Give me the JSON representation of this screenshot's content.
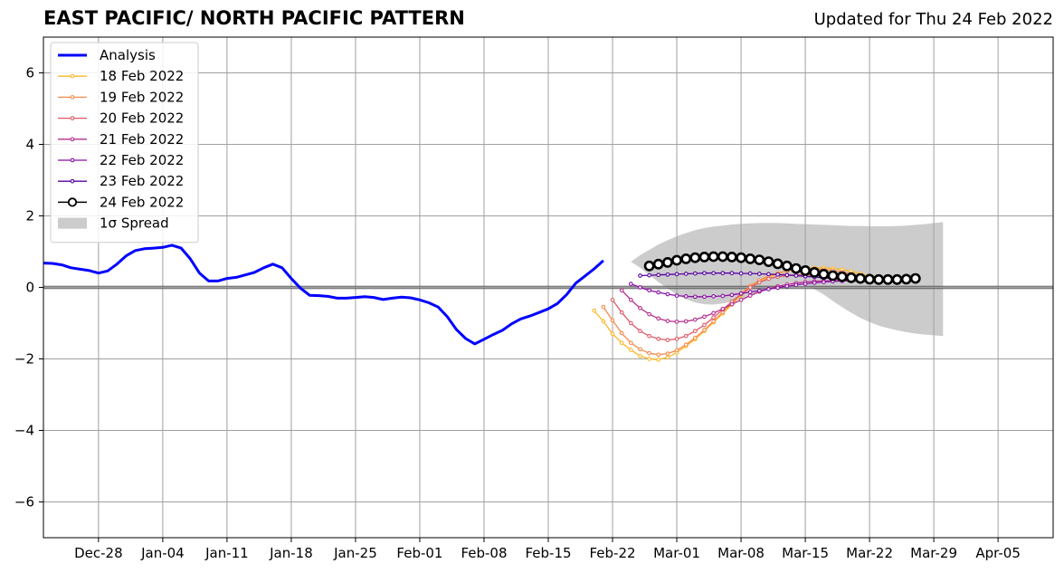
{
  "header": {
    "title": "EAST PACIFIC/ NORTH PACIFIC PATTERN",
    "updated": "Updated for Thu 24 Feb 2022"
  },
  "chart_data": {
    "type": "line",
    "x_axis_type": "date",
    "xlim": [
      "2021-12-22",
      "2022-04-11"
    ],
    "ylim": [
      -7,
      7
    ],
    "yticks": [
      -6,
      -4,
      -2,
      0,
      2,
      4,
      6
    ],
    "ytick_labels": [
      "−6",
      "−4",
      "−2",
      "0",
      "2",
      "4",
      "6"
    ],
    "xticks": [
      "2021-12-28",
      "2022-01-04",
      "2022-01-11",
      "2022-01-18",
      "2022-01-25",
      "2022-02-01",
      "2022-02-08",
      "2022-02-15",
      "2022-02-22",
      "2022-03-01",
      "2022-03-08",
      "2022-03-15",
      "2022-03-22",
      "2022-03-29",
      "2022-04-05"
    ],
    "xtick_labels": [
      "Dec-28",
      "Jan-04",
      "Jan-11",
      "Jan-18",
      "Jan-25",
      "Feb-01",
      "Feb-08",
      "Feb-15",
      "Feb-22",
      "Mar-01",
      "Mar-08",
      "Mar-15",
      "Mar-22",
      "Mar-29",
      "Apr-05"
    ],
    "grid": true,
    "legend_position": "upper-left",
    "colors": {
      "analysis": "#0000ff",
      "spread": "#cccccc",
      "grid": "#a0a0a0",
      "zero_line": "#000000"
    },
    "analysis": {
      "name": "Analysis",
      "color": "#0000ff",
      "start": "2021-12-22",
      "values": [
        0.68,
        0.67,
        0.63,
        0.55,
        0.51,
        0.47,
        0.4,
        0.46,
        0.65,
        0.88,
        1.03,
        1.08,
        1.1,
        1.12,
        1.18,
        1.1,
        0.8,
        0.4,
        0.18,
        0.18,
        0.25,
        0.28,
        0.35,
        0.42,
        0.55,
        0.65,
        0.55,
        0.25,
        -0.02,
        -0.22,
        -0.23,
        -0.25,
        -0.3,
        -0.3,
        -0.28,
        -0.26,
        -0.28,
        -0.34,
        -0.3,
        -0.27,
        -0.29,
        -0.35,
        -0.43,
        -0.55,
        -0.82,
        -1.18,
        -1.43,
        -1.58,
        -1.45,
        -1.32,
        -1.2,
        -1.02,
        -0.88,
        -0.8,
        -0.7,
        -0.6,
        -0.45,
        -0.2,
        0.12,
        0.32,
        0.52,
        0.75
      ]
    },
    "spread": {
      "name": "1σ Spread",
      "color": "#cccccc",
      "start": "2022-02-24",
      "upper": [
        0.72,
        0.9,
        1.05,
        1.2,
        1.32,
        1.43,
        1.52,
        1.6,
        1.66,
        1.7,
        1.73,
        1.76,
        1.78,
        1.79,
        1.8,
        1.8,
        1.8,
        1.79,
        1.78,
        1.77,
        1.76,
        1.75,
        1.74,
        1.73,
        1.72,
        1.72,
        1.71,
        1.71,
        1.71,
        1.72,
        1.73,
        1.75,
        1.77,
        1.8,
        1.83
      ],
      "lower": [
        0.72,
        0.55,
        0.35,
        0.15,
        -0.03,
        -0.2,
        -0.33,
        -0.42,
        -0.47,
        -0.48,
        -0.45,
        -0.4,
        -0.33,
        -0.25,
        -0.15,
        -0.05,
        0.05,
        0.12,
        0.12,
        0.06,
        -0.05,
        -0.2,
        -0.38,
        -0.55,
        -0.71,
        -0.85,
        -0.97,
        -1.07,
        -1.14,
        -1.2,
        -1.25,
        -1.29,
        -1.32,
        -1.34,
        -1.36
      ]
    },
    "series": [
      {
        "name": "18 Feb 2022",
        "color": "#fdb82a",
        "start": "2022-02-20",
        "values": [
          -0.65,
          -0.95,
          -1.3,
          -1.55,
          -1.75,
          -1.92,
          -2.0,
          -2.02,
          -1.96,
          -1.82,
          -1.64,
          -1.45,
          -1.22,
          -0.98,
          -0.73,
          -0.48,
          -0.22,
          0.0,
          0.16,
          0.28,
          0.38,
          0.46,
          0.51,
          0.54,
          0.55,
          0.55,
          0.53,
          0.5,
          0.45,
          0.39,
          0.32,
          0.25
        ]
      },
      {
        "name": "19 Feb 2022",
        "color": "#f58b4b",
        "start": "2022-02-21",
        "values": [
          -0.55,
          -0.92,
          -1.28,
          -1.55,
          -1.73,
          -1.84,
          -1.88,
          -1.85,
          -1.76,
          -1.6,
          -1.41,
          -1.19,
          -0.95,
          -0.69,
          -0.43,
          -0.18,
          0.04,
          0.2,
          0.32,
          0.4,
          0.46,
          0.5,
          0.52,
          0.52,
          0.5,
          0.47,
          0.43,
          0.38,
          0.32,
          0.27,
          0.22
        ]
      },
      {
        "name": "20 Feb 2022",
        "color": "#df5967",
        "start": "2022-02-22",
        "values": [
          -0.35,
          -0.7,
          -1.0,
          -1.22,
          -1.36,
          -1.44,
          -1.47,
          -1.44,
          -1.36,
          -1.22,
          -1.05,
          -0.84,
          -0.62,
          -0.4,
          -0.19,
          0.0,
          0.14,
          0.24,
          0.3,
          0.33,
          0.35,
          0.35,
          0.34,
          0.32,
          0.3,
          0.27,
          0.24,
          0.21,
          0.19,
          0.17
        ]
      },
      {
        "name": "21 Feb 2022",
        "color": "#b52f8c",
        "start": "2022-02-23",
        "values": [
          -0.08,
          -0.35,
          -0.58,
          -0.75,
          -0.87,
          -0.94,
          -0.96,
          -0.95,
          -0.9,
          -0.82,
          -0.72,
          -0.6,
          -0.47,
          -0.35,
          -0.23,
          -0.12,
          -0.04,
          0.03,
          0.08,
          0.12,
          0.15,
          0.17,
          0.18,
          0.19,
          0.19,
          0.18,
          0.17,
          0.16,
          0.15
        ]
      },
      {
        "name": "22 Feb 2022",
        "color": "#8a0fa6",
        "start": "2022-02-24",
        "values": [
          0.1,
          0.0,
          -0.08,
          -0.14,
          -0.19,
          -0.23,
          -0.25,
          -0.26,
          -0.26,
          -0.25,
          -0.24,
          -0.21,
          -0.17,
          -0.13,
          -0.09,
          -0.05,
          -0.01,
          0.03,
          0.07,
          0.1,
          0.13,
          0.15,
          0.17,
          0.18,
          0.19,
          0.19,
          0.19,
          0.18
        ]
      },
      {
        "name": "23 Feb 2022",
        "color": "#5502a3",
        "start": "2022-02-25",
        "values": [
          0.33,
          0.34,
          0.35,
          0.36,
          0.37,
          0.38,
          0.39,
          0.4,
          0.4,
          0.4,
          0.4,
          0.39,
          0.39,
          0.38,
          0.37,
          0.36,
          0.35,
          0.33,
          0.31,
          0.29,
          0.27,
          0.25,
          0.23,
          0.22,
          0.21,
          0.2,
          0.2
        ]
      },
      {
        "name": "24 Feb 2022",
        "color": "#000000",
        "start": "2022-02-26",
        "values": [
          0.6,
          0.65,
          0.7,
          0.76,
          0.8,
          0.83,
          0.85,
          0.86,
          0.86,
          0.85,
          0.83,
          0.8,
          0.77,
          0.72,
          0.66,
          0.6,
          0.53,
          0.47,
          0.42,
          0.37,
          0.33,
          0.3,
          0.27,
          0.25,
          0.23,
          0.22,
          0.22,
          0.22,
          0.23,
          0.25
        ]
      }
    ]
  }
}
